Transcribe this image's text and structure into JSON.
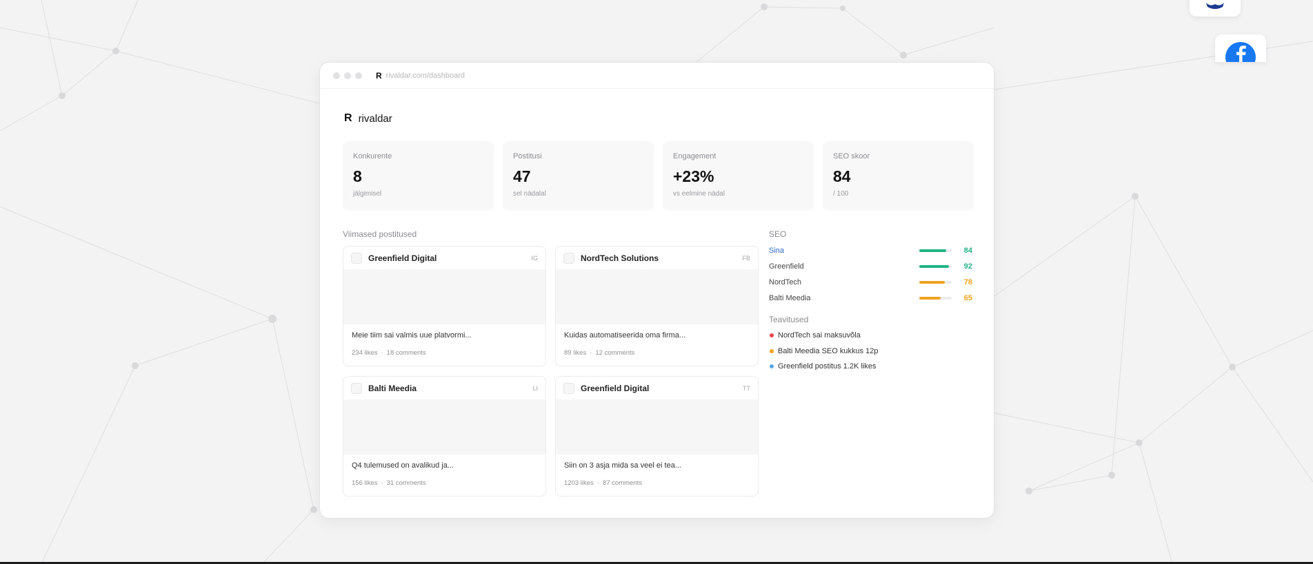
{
  "browser": {
    "url": "rivaldar.com/dashboard",
    "logo_glyph": "R"
  },
  "brand": {
    "logo_glyph": "R",
    "name": "rivaldar"
  },
  "stats": [
    {
      "label": "Konkurente",
      "value": "8",
      "sub": "jälgimisel"
    },
    {
      "label": "Postitusi",
      "value": "47",
      "sub": "sel nädalal"
    },
    {
      "label": "Engagement",
      "value": "+23%",
      "sub": "vs eelmine nädal"
    },
    {
      "label": "SEO skoor",
      "value": "84",
      "sub": "/ 100"
    }
  ],
  "posts_section": {
    "title": "Viimased postitused"
  },
  "posts": [
    {
      "author": "Greenfield Digital",
      "network": "IG",
      "text": "Meie tiim sai valmis uue platvormi...",
      "likes": "234 likes",
      "comments": "18 comments"
    },
    {
      "author": "NordTech Solutions",
      "network": "FB",
      "text": "Kuidas automatiseerida oma firma...",
      "likes": "89 likes",
      "comments": "12 comments"
    },
    {
      "author": "Balti Meedia",
      "network": "LI",
      "text": "Q4 tulemused on avalikud ja...",
      "likes": "156 likes",
      "comments": "31 comments"
    },
    {
      "author": "Greenfield Digital",
      "network": "TT",
      "text": "Siin on 3 asja mida sa veel ei tea...",
      "likes": "1203 likes",
      "comments": "87 comments"
    }
  ],
  "seo": {
    "title": "SEO",
    "rows": [
      {
        "label": "Sina",
        "score": "84",
        "level": 0.84,
        "color": "#1fb386"
      },
      {
        "label": "Greenfield",
        "score": "92",
        "level": 0.92,
        "color": "#1fb386"
      },
      {
        "label": "NordTech",
        "score": "78",
        "level": 0.78,
        "color": "#f0a21e"
      },
      {
        "label": "Balti Meedia",
        "score": "65",
        "level": 0.65,
        "color": "#f0a21e"
      }
    ]
  },
  "notifications": {
    "title": "Teavitused",
    "items": [
      {
        "text": "NordTech sai maksuvõla",
        "color": "#e5484d"
      },
      {
        "text": "Balti Meedia SEO kukkus 12p",
        "color": "#f0a21e"
      },
      {
        "text": "Greenfield postitus 1.2K likes",
        "color": "#5aa5e6"
      }
    ]
  },
  "colors": {
    "accent_green": "#1fb386",
    "accent_orange": "#f0a21e",
    "link_blue": "#2b6cc4",
    "facebook_blue": "#1877f2"
  },
  "icons": [
    "facebook-icon",
    "partial-logo-icon"
  ]
}
